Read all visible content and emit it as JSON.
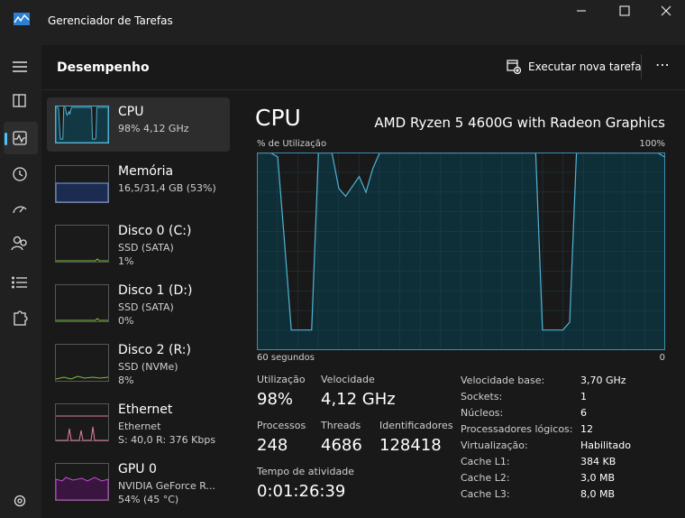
{
  "window": {
    "title": "Gerenciador de Tarefas"
  },
  "header": {
    "title": "Desempenho",
    "action": "Executar nova tarefa"
  },
  "devices": [
    {
      "name": "CPU",
      "details": [
        "98% 4,12 GHz"
      ]
    },
    {
      "name": "Memória",
      "details": [
        "16,5/31,4 GB (53%)"
      ]
    },
    {
      "name": "Disco 0 (C:)",
      "details": [
        "SSD (SATA)",
        "1%"
      ]
    },
    {
      "name": "Disco 1 (D:)",
      "details": [
        "SSD (SATA)",
        "0%"
      ]
    },
    {
      "name": "Disco 2 (R:)",
      "details": [
        "SSD (NVMe)",
        "8%"
      ]
    },
    {
      "name": "Ethernet",
      "details": [
        "Ethernet",
        "S: 40,0 R: 376 Kbps"
      ]
    },
    {
      "name": "GPU 0",
      "details": [
        "NVIDIA GeForce R...",
        "54% (45 °C)"
      ]
    }
  ],
  "detail": {
    "title": "CPU",
    "model": "AMD Ryzen 5 4600G with Radeon Graphics",
    "graph": {
      "y_label": "% de Utilização",
      "y_max_label": "100%",
      "x_label": "60 segundos",
      "x_end_label": "0",
      "ylim": [
        0,
        100
      ],
      "values": [
        100,
        100,
        100,
        98,
        55,
        10,
        10,
        10,
        10,
        100,
        100,
        100,
        82,
        78,
        83,
        88,
        80,
        92,
        100,
        100,
        100,
        100,
        100,
        100,
        100,
        100,
        100,
        100,
        100,
        100,
        100,
        100,
        100,
        100,
        100,
        100,
        100,
        100,
        100,
        100,
        100,
        100,
        10,
        10,
        10,
        10,
        14,
        100,
        100,
        100,
        100,
        100,
        100,
        100,
        100,
        100,
        100,
        100,
        100,
        100,
        98
      ]
    },
    "stats": [
      {
        "label": "Utilização",
        "value": "98%"
      },
      {
        "label": "Velocidade",
        "value": "4,12 GHz"
      },
      {
        "label": "Processos",
        "value": "248"
      },
      {
        "label": "Threads",
        "value": "4686"
      },
      {
        "label": "Identificadores",
        "value": "128418"
      }
    ],
    "uptime": {
      "label": "Tempo de atividade",
      "value": "0:01:26:39"
    },
    "specs": [
      {
        "label": "Velocidade base:",
        "value": "3,70 GHz"
      },
      {
        "label": "Sockets:",
        "value": "1"
      },
      {
        "label": "Núcleos:",
        "value": "6"
      },
      {
        "label": "Processadores lógicos:",
        "value": "12"
      },
      {
        "label": "Virtualização:",
        "value": "Habilitado"
      },
      {
        "label": "Cache L1:",
        "value": "384 KB"
      },
      {
        "label": "Cache L2:",
        "value": "3,0 MB"
      },
      {
        "label": "Cache L3:",
        "value": "8,0 MB"
      }
    ]
  }
}
